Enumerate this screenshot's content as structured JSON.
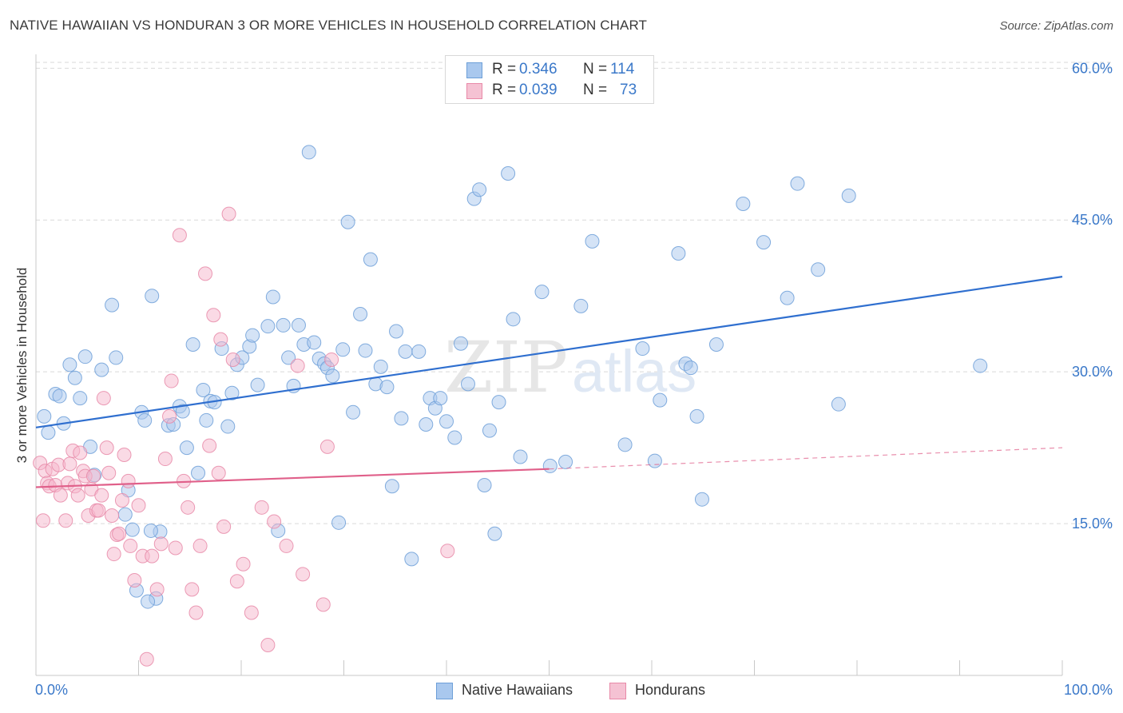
{
  "title": "NATIVE HAWAIIAN VS HONDURAN 3 OR MORE VEHICLES IN HOUSEHOLD CORRELATION CHART",
  "source": "Source: ZipAtlas.com",
  "watermark": {
    "part1": "ZIP",
    "part2": "atlas"
  },
  "legend": {
    "series1": {
      "r_label": "R =",
      "r_value": "0.346",
      "n_label": "N =",
      "n_value": "114"
    },
    "series2": {
      "r_label": "R =",
      "r_value": "0.039",
      "n_label": "N =",
      "n_value": "73"
    }
  },
  "bottom_legend": {
    "series1": "Native Hawaiians",
    "series2": "Hondurans"
  },
  "colors": {
    "blue_fill": "#a9c8ee",
    "blue_stroke": "#6d9fd8",
    "blue_line": "#2f6fcf",
    "pink_fill": "#f5b6cb",
    "pink_stroke": "#e889a8",
    "pink_line": "#e0608a",
    "tick_label": "#3a78c9",
    "grid": "#d9d9d9"
  },
  "chart_data": {
    "type": "scatter",
    "title": "NATIVE HAWAIIAN VS HONDURAN 3 OR MORE VEHICLES IN HOUSEHOLD CORRELATION CHART",
    "xlabel": "",
    "ylabel": "3 or more Vehicles in Household",
    "xlim": [
      0,
      100
    ],
    "ylim": [
      0,
      62
    ],
    "x_tick_labels": [
      "0.0%",
      "100.0%"
    ],
    "y_ticks": [
      15,
      30,
      45,
      60
    ],
    "y_tick_labels": [
      "15.0%",
      "30.0%",
      "45.0%",
      "60.0%"
    ],
    "grid": true,
    "legend_position": "top-center",
    "series": [
      {
        "name": "Native Hawaiians",
        "r": 0.346,
        "n": 114,
        "trend": {
          "x": [
            0,
            100
          ],
          "y": [
            24.5,
            39.4
          ]
        },
        "points": [
          [
            0.8,
            25.6
          ],
          [
            1.2,
            24.0
          ],
          [
            1.9,
            27.8
          ],
          [
            2.3,
            27.6
          ],
          [
            2.7,
            24.9
          ],
          [
            3.3,
            30.7
          ],
          [
            3.8,
            29.4
          ],
          [
            4.3,
            27.4
          ],
          [
            4.8,
            31.5
          ],
          [
            5.3,
            22.6
          ],
          [
            5.7,
            19.8
          ],
          [
            6.4,
            30.2
          ],
          [
            7.4,
            36.6
          ],
          [
            7.8,
            31.4
          ],
          [
            8.7,
            15.9
          ],
          [
            9.0,
            18.3
          ],
          [
            9.4,
            14.4
          ],
          [
            9.8,
            8.4
          ],
          [
            10.3,
            26.0
          ],
          [
            10.6,
            25.2
          ],
          [
            11.3,
            37.5
          ],
          [
            11.7,
            7.6
          ],
          [
            12.1,
            14.2
          ],
          [
            12.9,
            24.7
          ],
          [
            13.4,
            24.8
          ],
          [
            14.0,
            26.6
          ],
          [
            14.3,
            26.1
          ],
          [
            14.7,
            22.5
          ],
          [
            15.3,
            32.7
          ],
          [
            15.8,
            20.0
          ],
          [
            16.3,
            28.2
          ],
          [
            16.6,
            25.2
          ],
          [
            17.0,
            27.1
          ],
          [
            17.4,
            27.0
          ],
          [
            18.1,
            32.3
          ],
          [
            18.7,
            24.6
          ],
          [
            19.1,
            27.9
          ],
          [
            19.6,
            30.7
          ],
          [
            20.1,
            31.4
          ],
          [
            20.8,
            32.5
          ],
          [
            21.1,
            33.6
          ],
          [
            21.6,
            28.7
          ],
          [
            22.6,
            34.5
          ],
          [
            23.1,
            37.4
          ],
          [
            23.6,
            14.3
          ],
          [
            24.1,
            34.6
          ],
          [
            24.6,
            31.4
          ],
          [
            25.1,
            28.6
          ],
          [
            25.6,
            34.6
          ],
          [
            26.1,
            32.7
          ],
          [
            26.6,
            51.7
          ],
          [
            27.1,
            32.9
          ],
          [
            27.6,
            31.3
          ],
          [
            28.1,
            30.8
          ],
          [
            28.4,
            30.4
          ],
          [
            28.9,
            29.6
          ],
          [
            29.5,
            15.1
          ],
          [
            29.9,
            32.2
          ],
          [
            30.4,
            44.8
          ],
          [
            30.9,
            26.0
          ],
          [
            31.6,
            35.7
          ],
          [
            32.1,
            32.1
          ],
          [
            32.6,
            41.1
          ],
          [
            33.1,
            28.8
          ],
          [
            33.6,
            30.5
          ],
          [
            34.2,
            28.5
          ],
          [
            34.7,
            18.7
          ],
          [
            35.1,
            34.0
          ],
          [
            35.6,
            25.4
          ],
          [
            36.0,
            32.0
          ],
          [
            36.6,
            11.5
          ],
          [
            37.3,
            32.0
          ],
          [
            38.0,
            24.8
          ],
          [
            38.4,
            27.4
          ],
          [
            38.9,
            26.4
          ],
          [
            39.4,
            27.4
          ],
          [
            40.0,
            25.1
          ],
          [
            40.8,
            23.5
          ],
          [
            41.4,
            32.8
          ],
          [
            42.1,
            28.8
          ],
          [
            42.7,
            47.1
          ],
          [
            43.2,
            48.0
          ],
          [
            43.7,
            18.8
          ],
          [
            44.2,
            24.2
          ],
          [
            44.7,
            14.0
          ],
          [
            45.1,
            27.0
          ],
          [
            46.0,
            49.6
          ],
          [
            46.5,
            35.2
          ],
          [
            47.2,
            21.6
          ],
          [
            49.3,
            37.9
          ],
          [
            50.1,
            20.7
          ],
          [
            51.6,
            21.1
          ],
          [
            53.1,
            36.5
          ],
          [
            54.2,
            42.9
          ],
          [
            57.4,
            22.8
          ],
          [
            59.1,
            32.3
          ],
          [
            60.3,
            21.2
          ],
          [
            60.8,
            27.2
          ],
          [
            62.6,
            41.7
          ],
          [
            63.3,
            30.8
          ],
          [
            63.8,
            30.4
          ],
          [
            64.4,
            25.6
          ],
          [
            64.9,
            17.4
          ],
          [
            66.3,
            32.7
          ],
          [
            68.9,
            46.6
          ],
          [
            70.9,
            42.8
          ],
          [
            73.2,
            37.3
          ],
          [
            74.2,
            48.6
          ],
          [
            76.2,
            40.1
          ],
          [
            78.2,
            26.8
          ],
          [
            79.2,
            47.4
          ],
          [
            92.0,
            30.6
          ],
          [
            10.9,
            7.3
          ],
          [
            11.2,
            14.3
          ]
        ]
      },
      {
        "name": "Hondurans",
        "r": 0.039,
        "n": 73,
        "trend": {
          "x": [
            0,
            50
          ],
          "y": [
            18.6,
            20.4
          ]
        },
        "trend_dashed": {
          "x": [
            50,
            100
          ],
          "y": [
            20.4,
            22.5
          ]
        },
        "points": [
          [
            0.4,
            21.0
          ],
          [
            0.7,
            15.3
          ],
          [
            0.9,
            20.2
          ],
          [
            1.1,
            19.0
          ],
          [
            1.3,
            18.7
          ],
          [
            1.6,
            20.4
          ],
          [
            1.9,
            18.8
          ],
          [
            2.2,
            20.8
          ],
          [
            2.4,
            17.8
          ],
          [
            2.9,
            15.3
          ],
          [
            3.1,
            19.0
          ],
          [
            3.3,
            20.9
          ],
          [
            3.6,
            22.2
          ],
          [
            3.8,
            18.7
          ],
          [
            4.1,
            17.8
          ],
          [
            4.3,
            22.0
          ],
          [
            4.6,
            20.2
          ],
          [
            4.8,
            19.7
          ],
          [
            5.1,
            15.8
          ],
          [
            5.4,
            18.4
          ],
          [
            5.6,
            19.7
          ],
          [
            5.9,
            16.3
          ],
          [
            6.1,
            16.3
          ],
          [
            6.4,
            17.8
          ],
          [
            6.6,
            27.4
          ],
          [
            6.9,
            22.5
          ],
          [
            7.1,
            20.0
          ],
          [
            7.4,
            15.8
          ],
          [
            7.6,
            12.0
          ],
          [
            7.9,
            13.9
          ],
          [
            8.1,
            14.0
          ],
          [
            8.4,
            17.3
          ],
          [
            8.6,
            21.8
          ],
          [
            9.0,
            19.2
          ],
          [
            9.2,
            12.8
          ],
          [
            9.6,
            9.4
          ],
          [
            10.0,
            16.8
          ],
          [
            10.4,
            11.8
          ],
          [
            10.8,
            1.6
          ],
          [
            11.3,
            11.8
          ],
          [
            11.8,
            8.5
          ],
          [
            12.2,
            13.0
          ],
          [
            12.6,
            21.4
          ],
          [
            13.0,
            25.6
          ],
          [
            13.2,
            29.1
          ],
          [
            13.6,
            12.6
          ],
          [
            14.0,
            43.5
          ],
          [
            14.4,
            19.2
          ],
          [
            14.8,
            16.6
          ],
          [
            15.2,
            8.5
          ],
          [
            15.6,
            6.2
          ],
          [
            16.0,
            12.8
          ],
          [
            16.5,
            39.7
          ],
          [
            16.9,
            22.7
          ],
          [
            17.3,
            35.6
          ],
          [
            17.8,
            20.0
          ],
          [
            18.0,
            33.2
          ],
          [
            18.3,
            14.7
          ],
          [
            18.8,
            45.6
          ],
          [
            19.2,
            31.2
          ],
          [
            19.6,
            9.3
          ],
          [
            20.2,
            11.0
          ],
          [
            21.0,
            6.2
          ],
          [
            22.0,
            16.6
          ],
          [
            22.6,
            3.0
          ],
          [
            23.2,
            15.2
          ],
          [
            24.4,
            12.8
          ],
          [
            25.5,
            30.6
          ],
          [
            26.0,
            10.0
          ],
          [
            28.0,
            7.0
          ],
          [
            28.4,
            22.6
          ],
          [
            28.8,
            31.2
          ],
          [
            40.1,
            12.3
          ]
        ]
      }
    ]
  }
}
